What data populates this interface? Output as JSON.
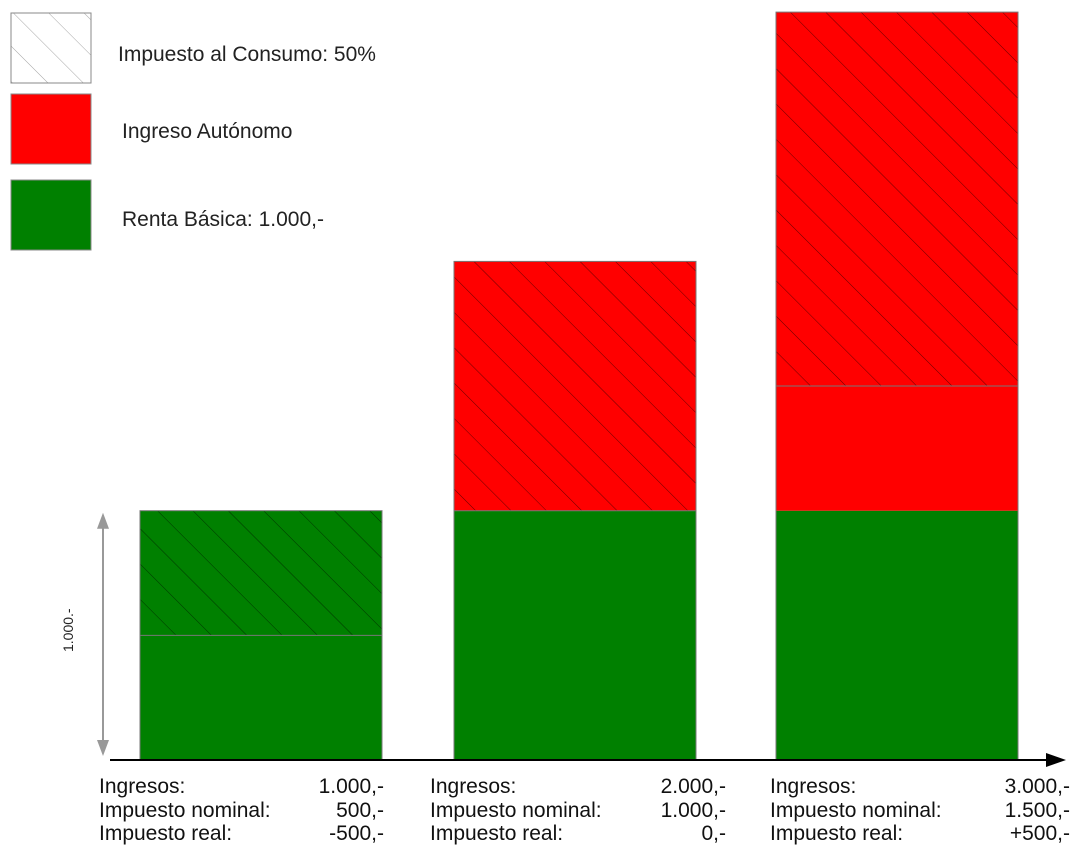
{
  "legend": [
    {
      "label": "Impuesto al Consumo: 50%",
      "style": "hatch",
      "color": "#ffffff"
    },
    {
      "label": "Ingreso Autónomo",
      "style": "solid",
      "color": "#ff0000"
    },
    {
      "label": "Renta Básica: 1.000,-",
      "style": "solid",
      "color": "#008000"
    }
  ],
  "colors": {
    "renta_basica": "#008000",
    "ingreso_autonomo": "#ff0000",
    "hatch_line": "#000000",
    "border": "#888888"
  },
  "y_axis_label": "1.000.-",
  "columns": [
    {
      "ingresos_label": "Ingresos:",
      "ingresos_value": "1.000,-",
      "nominal_label": "Impuesto nominal:",
      "nominal_value": "500,-",
      "real_label": "Impuesto real:",
      "real_value": "-500,-"
    },
    {
      "ingresos_label": "Ingresos:",
      "ingresos_value": "2.000,-",
      "nominal_label": "Impuesto nominal:",
      "nominal_value": "1.000,-",
      "real_label": "Impuesto real:",
      "real_value": "0,-"
    },
    {
      "ingresos_label": "Ingresos:",
      "ingresos_value": "3.000,-",
      "nominal_label": "Impuesto nominal:",
      "nominal_value": "1.500,-",
      "real_label": "Impuesto real:",
      "real_value": "+500,-"
    }
  ],
  "chart_data": {
    "type": "bar",
    "stacked": true,
    "categories": [
      "1.000,-",
      "2.000,-",
      "3.000,-"
    ],
    "series": [
      {
        "name": "Renta Básica: 1.000,-",
        "values": [
          1000,
          1000,
          1000
        ]
      },
      {
        "name": "Ingreso Autónomo",
        "values": [
          0,
          1000,
          2000
        ]
      }
    ],
    "tax_share": 0.5,
    "tax_hatched_amount": [
      500,
      1000,
      1500
    ],
    "ylim": [
      0,
      3000
    ],
    "legend_position": "top-left",
    "grid": false
  }
}
